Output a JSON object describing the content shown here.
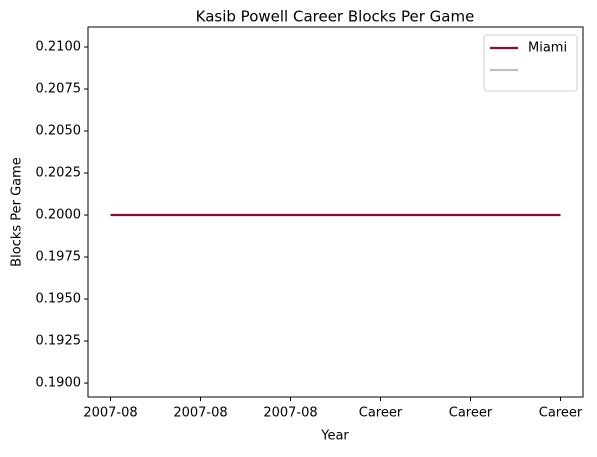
{
  "chart_data": {
    "type": "line",
    "title": "Kasib Powell Career Blocks Per Game",
    "xlabel": "Year",
    "ylabel": "Blocks Per Game",
    "categories": [
      "2007-08",
      "2007-08",
      "2007-08",
      "Career",
      "Career",
      "Career"
    ],
    "series": [
      {
        "name": "Miami",
        "color": "#8c0a3a",
        "values": [
          0.2,
          0.2,
          0.2,
          0.2,
          0.2,
          0.2
        ]
      },
      {
        "color": "#c0c0c0",
        "values": [
          null,
          null,
          null,
          null,
          null,
          null
        ]
      }
    ],
    "ylim": [
      0.18917,
      0.21119
    ],
    "yticks": [
      {
        "value": 0.19,
        "label": "0.1900"
      },
      {
        "value": 0.1925,
        "label": "0.1925"
      },
      {
        "value": 0.195,
        "label": "0.1950"
      },
      {
        "value": 0.1975,
        "label": "0.1975"
      },
      {
        "value": 0.2,
        "label": "0.2000"
      },
      {
        "value": 0.2025,
        "label": "0.2025"
      },
      {
        "value": 0.205,
        "label": "0.2050"
      },
      {
        "value": 0.2075,
        "label": "0.2075"
      },
      {
        "value": 0.21,
        "label": "0.2100"
      }
    ],
    "legend": "upper right"
  }
}
